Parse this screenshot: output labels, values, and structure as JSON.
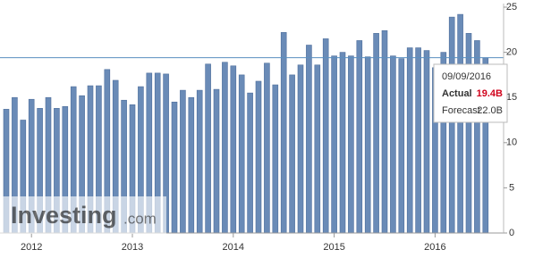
{
  "chart_data": {
    "type": "bar",
    "categories": [
      null,
      null,
      null,
      null,
      null,
      null,
      null,
      null,
      null,
      null,
      null,
      null,
      null,
      null,
      null,
      null,
      null,
      null,
      null,
      null,
      null,
      null,
      null,
      null,
      null,
      null,
      null,
      null,
      null,
      null,
      null,
      null,
      null,
      null,
      null,
      null,
      null,
      null,
      null,
      null,
      null,
      null,
      null,
      null,
      null,
      null,
      null,
      null,
      null,
      null,
      null,
      null,
      null,
      null,
      null,
      null,
      null,
      null
    ],
    "values": [
      13.7,
      15.0,
      12.5,
      14.8,
      13.8,
      15.0,
      13.8,
      14.0,
      16.2,
      15.2,
      16.3,
      16.3,
      18.1,
      16.9,
      14.7,
      14.2,
      16.2,
      17.7,
      17.7,
      17.6,
      14.5,
      15.8,
      15.0,
      15.8,
      18.7,
      15.9,
      18.9,
      18.5,
      17.5,
      15.5,
      16.8,
      18.8,
      16.4,
      22.2,
      17.5,
      18.6,
      20.8,
      18.6,
      21.5,
      19.6,
      20.0,
      19.6,
      21.3,
      19.5,
      22.1,
      22.4,
      19.6,
      19.3,
      20.5,
      20.5,
      20.2,
      18.3,
      20.0,
      23.9,
      24.2,
      22.1,
      21.3,
      19.4
    ],
    "color": "#6a8bb7",
    "ylim": [
      0,
      25
    ],
    "yticks": [
      0,
      5,
      10,
      15,
      20,
      25
    ],
    "year_labels": [
      "2012",
      "2013",
      "2014",
      "2015",
      "2016"
    ],
    "tooltip": {
      "date": "09/09/2016",
      "actual_label": "Actual",
      "actual_value": "19.4B",
      "forecast_label": "Forecast",
      "forecast_value": "22.0B"
    },
    "watermark": [
      "Investing",
      ".com"
    ]
  }
}
